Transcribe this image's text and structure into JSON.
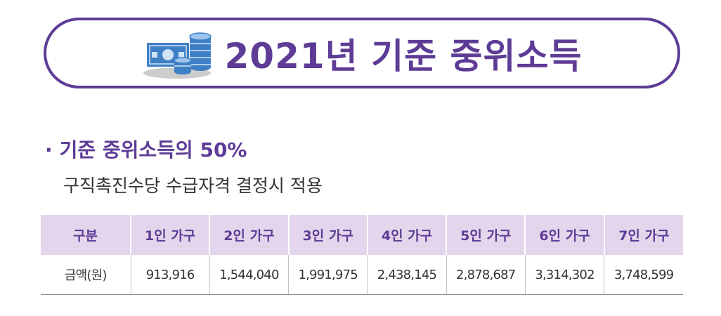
{
  "banner": {
    "title": "2021년 기준 중위소득",
    "icon": "money-stack-icon"
  },
  "section": {
    "bullet": "·",
    "heading": "기준 중위소득의 50%",
    "description": "구직촉진수당 수급자격 결정시 적용"
  },
  "table": {
    "headers": [
      "구분",
      "1인 가구",
      "2인 가구",
      "3인 가구",
      "4인 가구",
      "5인 가구",
      "6인 가구",
      "7인 가구"
    ],
    "rows": [
      [
        "금액(원)",
        "913,916",
        "1,544,040",
        "1,991,975",
        "2,438,145",
        "2,878,687",
        "3,314,302",
        "3,748,599"
      ]
    ]
  },
  "colors": {
    "accent": "#5e3c96",
    "header_bg": "#e3d6ec",
    "icon_blue": "#3f7fc4"
  }
}
